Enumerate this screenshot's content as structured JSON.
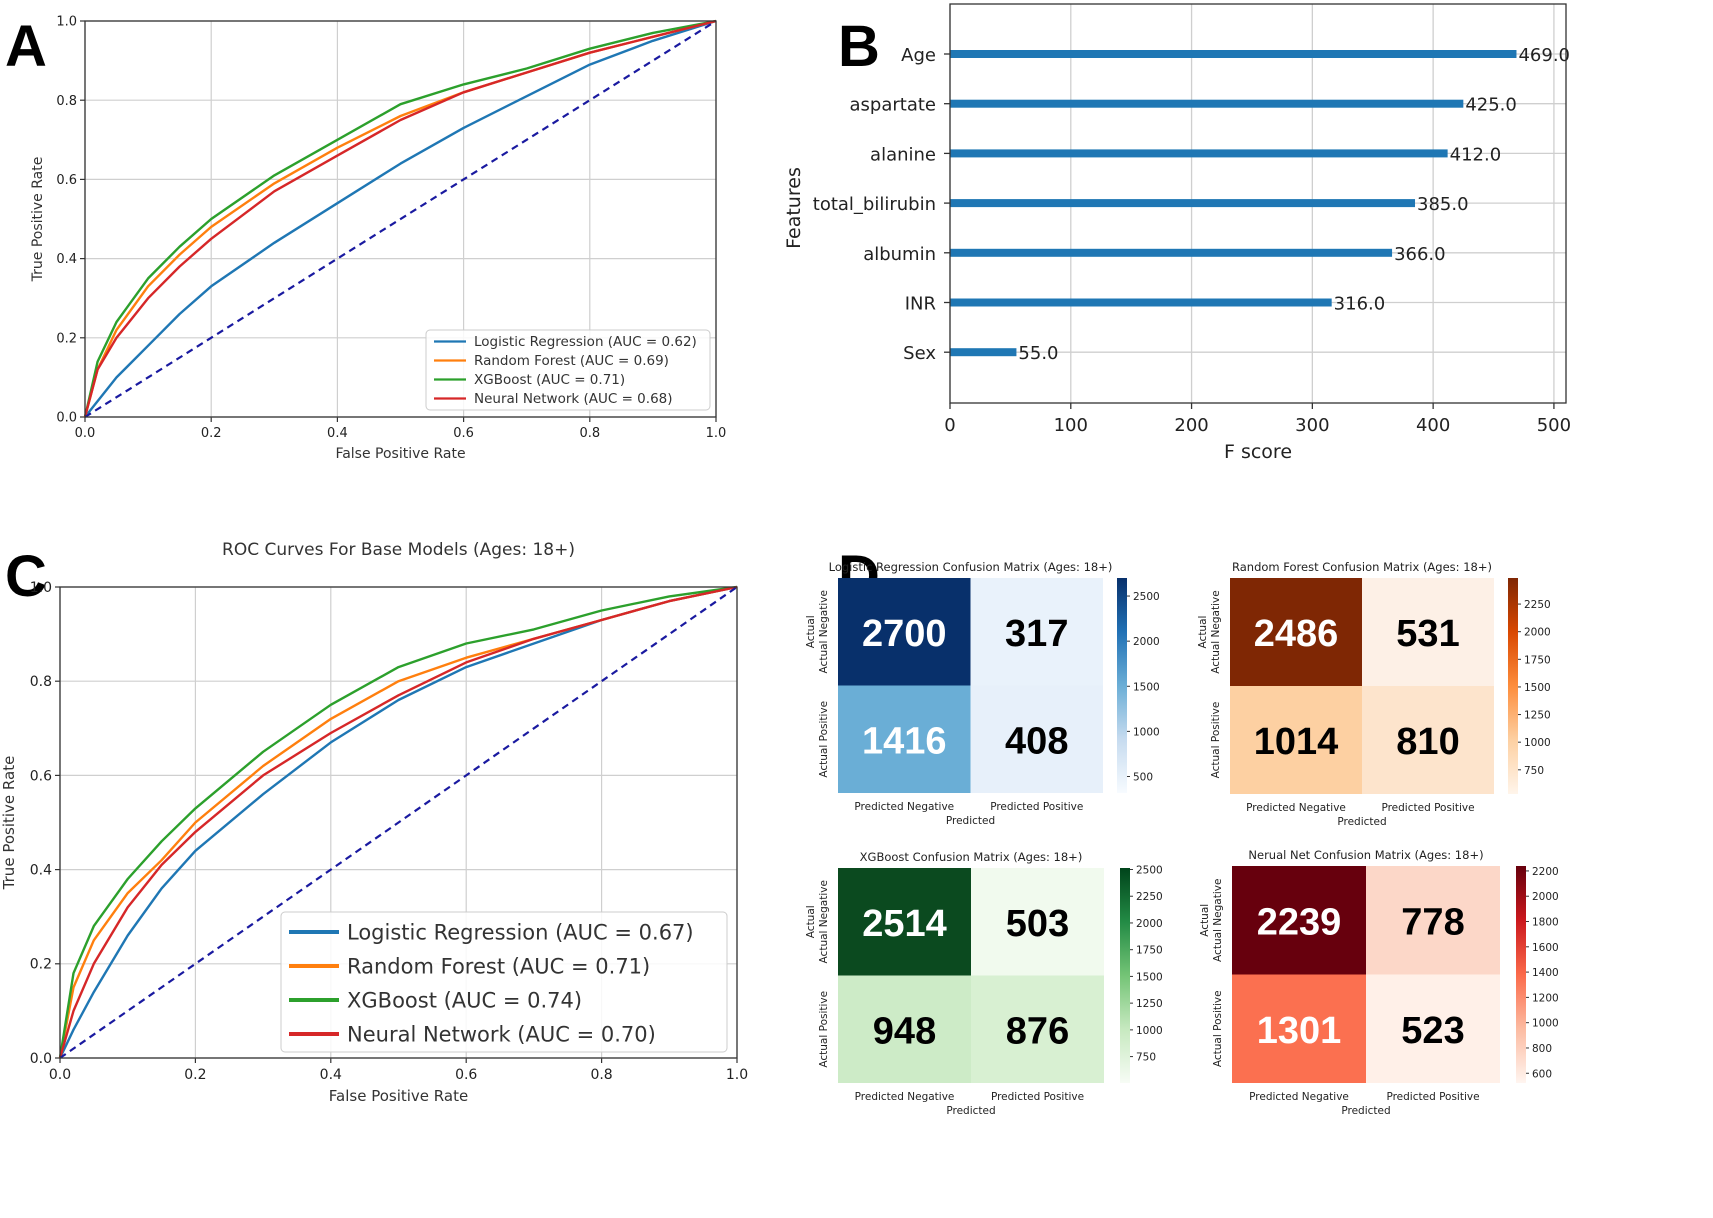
{
  "panels": {
    "A": {
      "letter": "A"
    },
    "B": {
      "letter": "B"
    },
    "C": {
      "letter": "C"
    },
    "D": {
      "letter": "D"
    }
  },
  "chart_data": [
    {
      "id": "A",
      "type": "line",
      "title": "",
      "xlabel": "False Positive Rate",
      "ylabel": "True Positive Rate",
      "xlim": [
        0,
        1
      ],
      "ylim": [
        0,
        1
      ],
      "xticks": [
        "0.0",
        "0.2",
        "0.4",
        "0.6",
        "0.8",
        "1.0"
      ],
      "yticks": [
        "0.0",
        "0.2",
        "0.4",
        "0.6",
        "0.8",
        "1.0"
      ],
      "grid": true,
      "legend_position": "lower-right",
      "series": [
        {
          "name": "Logistic Regression (AUC = 0.62)",
          "color": "#1f77b4",
          "x": [
            0,
            0.05,
            0.1,
            0.15,
            0.2,
            0.3,
            0.4,
            0.5,
            0.6,
            0.7,
            0.8,
            0.9,
            1.0
          ],
          "y": [
            0,
            0.1,
            0.18,
            0.26,
            0.33,
            0.44,
            0.54,
            0.64,
            0.73,
            0.81,
            0.89,
            0.95,
            1.0
          ]
        },
        {
          "name": "Random Forest (AUC = 0.69)",
          "color": "#ff7f0e",
          "x": [
            0,
            0.02,
            0.05,
            0.1,
            0.15,
            0.2,
            0.3,
            0.4,
            0.5,
            0.6,
            0.7,
            0.8,
            0.9,
            1.0
          ],
          "y": [
            0,
            0.12,
            0.22,
            0.33,
            0.41,
            0.48,
            0.59,
            0.68,
            0.76,
            0.82,
            0.87,
            0.92,
            0.96,
            1.0
          ]
        },
        {
          "name": "XGBoost (AUC = 0.71)",
          "color": "#2ca02c",
          "x": [
            0,
            0.02,
            0.05,
            0.1,
            0.15,
            0.2,
            0.3,
            0.4,
            0.5,
            0.6,
            0.7,
            0.8,
            0.9,
            1.0
          ],
          "y": [
            0,
            0.14,
            0.24,
            0.35,
            0.43,
            0.5,
            0.61,
            0.7,
            0.79,
            0.84,
            0.88,
            0.93,
            0.97,
            1.0
          ]
        },
        {
          "name": "Neural Network (AUC = 0.68)",
          "color": "#d62728",
          "x": [
            0,
            0.02,
            0.05,
            0.1,
            0.15,
            0.2,
            0.3,
            0.4,
            0.5,
            0.6,
            0.7,
            0.8,
            0.9,
            1.0
          ],
          "y": [
            0,
            0.12,
            0.2,
            0.3,
            0.38,
            0.45,
            0.57,
            0.66,
            0.75,
            0.82,
            0.87,
            0.92,
            0.96,
            1.0
          ]
        },
        {
          "name": "chance",
          "color": "#1a1aa0",
          "dashed": true,
          "x": [
            0,
            1
          ],
          "y": [
            0,
            1
          ]
        }
      ]
    },
    {
      "id": "B",
      "type": "bar",
      "orientation": "horizontal",
      "title": "",
      "xlabel": "F score",
      "ylabel": "Features",
      "xlim": [
        0,
        510
      ],
      "xticks": [
        "0",
        "100",
        "200",
        "300",
        "400",
        "500"
      ],
      "grid": true,
      "color": "#1f77b4",
      "categories": [
        "Age",
        "aspartate",
        "alanine",
        "total_bilirubin",
        "albumin",
        "INR",
        "Sex"
      ],
      "values": [
        469.0,
        425.0,
        412.0,
        385.0,
        366.0,
        316.0,
        55.0
      ],
      "value_labels": [
        "469.0",
        "425.0",
        "412.0",
        "385.0",
        "366.0",
        "316.0",
        "55.0"
      ]
    },
    {
      "id": "C",
      "type": "line",
      "title": "ROC Curves For Base Models (Ages: 18+)",
      "xlabel": "False Positive Rate",
      "ylabel": "True Positive Rate",
      "xlim": [
        0,
        1
      ],
      "ylim": [
        0,
        1
      ],
      "xticks": [
        "0.0",
        "0.2",
        "0.4",
        "0.6",
        "0.8",
        "1.0"
      ],
      "yticks": [
        "0.0",
        "0.2",
        "0.4",
        "0.6",
        "0.8",
        "1.0"
      ],
      "grid": true,
      "legend_position": "lower-right",
      "series": [
        {
          "name": "Logistic Regression (AUC = 0.67)",
          "color": "#1f77b4",
          "x": [
            0,
            0.02,
            0.05,
            0.1,
            0.15,
            0.2,
            0.3,
            0.4,
            0.5,
            0.6,
            0.7,
            0.8,
            0.9,
            1.0
          ],
          "y": [
            0,
            0.06,
            0.14,
            0.26,
            0.36,
            0.44,
            0.56,
            0.67,
            0.76,
            0.83,
            0.88,
            0.93,
            0.97,
            1.0
          ]
        },
        {
          "name": "Random Forest (AUC = 0.71)",
          "color": "#ff7f0e",
          "x": [
            0,
            0.02,
            0.05,
            0.1,
            0.15,
            0.2,
            0.3,
            0.4,
            0.5,
            0.6,
            0.7,
            0.8,
            0.9,
            1.0
          ],
          "y": [
            0,
            0.15,
            0.25,
            0.35,
            0.42,
            0.5,
            0.62,
            0.72,
            0.8,
            0.85,
            0.89,
            0.93,
            0.97,
            1.0
          ]
        },
        {
          "name": "XGBoost (AUC = 0.74)",
          "color": "#2ca02c",
          "x": [
            0,
            0.02,
            0.05,
            0.1,
            0.15,
            0.2,
            0.3,
            0.4,
            0.5,
            0.6,
            0.7,
            0.8,
            0.9,
            1.0
          ],
          "y": [
            0,
            0.18,
            0.28,
            0.38,
            0.46,
            0.53,
            0.65,
            0.75,
            0.83,
            0.88,
            0.91,
            0.95,
            0.98,
            1.0
          ]
        },
        {
          "name": "Neural Network (AUC = 0.70)",
          "color": "#d62728",
          "x": [
            0,
            0.02,
            0.05,
            0.1,
            0.15,
            0.2,
            0.3,
            0.4,
            0.5,
            0.6,
            0.7,
            0.8,
            0.9,
            1.0
          ],
          "y": [
            0,
            0.1,
            0.2,
            0.32,
            0.41,
            0.48,
            0.6,
            0.69,
            0.77,
            0.84,
            0.89,
            0.93,
            0.97,
            1.0
          ]
        },
        {
          "name": "chance",
          "color": "#1a1aa0",
          "dashed": true,
          "x": [
            0,
            1
          ],
          "y": [
            0,
            1
          ]
        }
      ]
    },
    {
      "id": "D1",
      "type": "heatmap",
      "title": "Logistic Regression Confusion Matrix (Ages: 18+)",
      "xlabel": "Predicted",
      "ylabel": "Actual",
      "x_categories": [
        "Predicted Negative",
        "Predicted Positive"
      ],
      "y_categories": [
        "Actual Negative",
        "Actual Positive"
      ],
      "values": [
        [
          2700,
          317
        ],
        [
          1416,
          408
        ]
      ],
      "cmap": "Blues",
      "cell_colors": [
        [
          "#08306b",
          "#e9f2fb"
        ],
        [
          "#6aaed6",
          "#e7f0fa"
        ]
      ],
      "text_colors": [
        [
          "#ffffff",
          "#000000"
        ],
        [
          "#ffffff",
          "#000000"
        ]
      ],
      "colorbar_ticks": [
        "2500",
        "2000",
        "1500",
        "1000",
        "500"
      ],
      "colorbar_values": [
        2500,
        2000,
        1500,
        1000,
        500
      ],
      "colorbar_range": [
        317,
        2700
      ],
      "colorbar_colors": [
        "#08306b",
        "#2171b5",
        "#6baed6",
        "#c6dbef",
        "#f7fbff"
      ]
    },
    {
      "id": "D2",
      "type": "heatmap",
      "title": "Random Forest Confusion Matrix (Ages: 18+)",
      "xlabel": "Predicted",
      "ylabel": "Actual",
      "x_categories": [
        "Predicted Negative",
        "Predicted Positive"
      ],
      "y_categories": [
        "Actual Negative",
        "Actual Positive"
      ],
      "values": [
        [
          2486,
          531
        ],
        [
          1014,
          810
        ]
      ],
      "cmap": "Oranges",
      "cell_colors": [
        [
          "#7f2704",
          "#fdf0e6"
        ],
        [
          "#fdd0a2",
          "#fde4cc"
        ]
      ],
      "text_colors": [
        [
          "#ffffff",
          "#000000"
        ],
        [
          "#000000",
          "#000000"
        ]
      ],
      "colorbar_ticks": [
        "2250",
        "2000",
        "1750",
        "1500",
        "1250",
        "1000",
        "750"
      ],
      "colorbar_values": [
        2250,
        2000,
        1750,
        1500,
        1250,
        1000,
        750
      ],
      "colorbar_range": [
        531,
        2486
      ],
      "colorbar_colors": [
        "#7f2704",
        "#d94801",
        "#fd8d3c",
        "#fdd0a2",
        "#fff5eb"
      ]
    },
    {
      "id": "D3",
      "type": "heatmap",
      "title": "XGBoost Confusion Matrix (Ages: 18+)",
      "xlabel": "Predicted",
      "ylabel": "Actual",
      "x_categories": [
        "Predicted Negative",
        "Predicted Positive"
      ],
      "y_categories": [
        "Actual Negative",
        "Actual Positive"
      ],
      "values": [
        [
          2514,
          503
        ],
        [
          948,
          876
        ]
      ],
      "cmap": "Greens",
      "cell_colors": [
        [
          "#0b4a1f",
          "#f1faee"
        ],
        [
          "#cdebc7",
          "#d8f0d2"
        ]
      ],
      "text_colors": [
        [
          "#ffffff",
          "#000000"
        ],
        [
          "#000000",
          "#000000"
        ]
      ],
      "colorbar_ticks": [
        "2500",
        "2250",
        "2000",
        "1750",
        "1500",
        "1250",
        "1000",
        "750"
      ],
      "colorbar_values": [
        2500,
        2250,
        2000,
        1750,
        1500,
        1250,
        1000,
        750
      ],
      "colorbar_range": [
        503,
        2514
      ],
      "colorbar_colors": [
        "#00441b",
        "#238b45",
        "#74c476",
        "#c7e9c0",
        "#f7fcf5"
      ]
    },
    {
      "id": "D4",
      "type": "heatmap",
      "title": "Nerual Net Confusion Matrix (Ages: 18+)",
      "xlabel": "Predicted",
      "ylabel": "Actual",
      "x_categories": [
        "Predicted Negative",
        "Predicted Positive"
      ],
      "y_categories": [
        "Actual Negative",
        "Actual Positive"
      ],
      "values": [
        [
          2239,
          778
        ],
        [
          1301,
          523
        ]
      ],
      "cmap": "Reds",
      "cell_colors": [
        [
          "#67000d",
          "#fcd7c8"
        ],
        [
          "#fb7050",
          "#fff0e8"
        ]
      ],
      "text_colors": [
        [
          "#ffffff",
          "#000000"
        ],
        [
          "#ffffff",
          "#000000"
        ]
      ],
      "colorbar_ticks": [
        "2200",
        "2000",
        "1800",
        "1600",
        "1400",
        "1200",
        "1000",
        "800",
        "600"
      ],
      "colorbar_values": [
        2200,
        2000,
        1800,
        1600,
        1400,
        1200,
        1000,
        800,
        600
      ],
      "colorbar_range": [
        523,
        2239
      ],
      "colorbar_colors": [
        "#67000d",
        "#cb181d",
        "#fb6a4a",
        "#fcbba1",
        "#fff5f0"
      ]
    }
  ]
}
